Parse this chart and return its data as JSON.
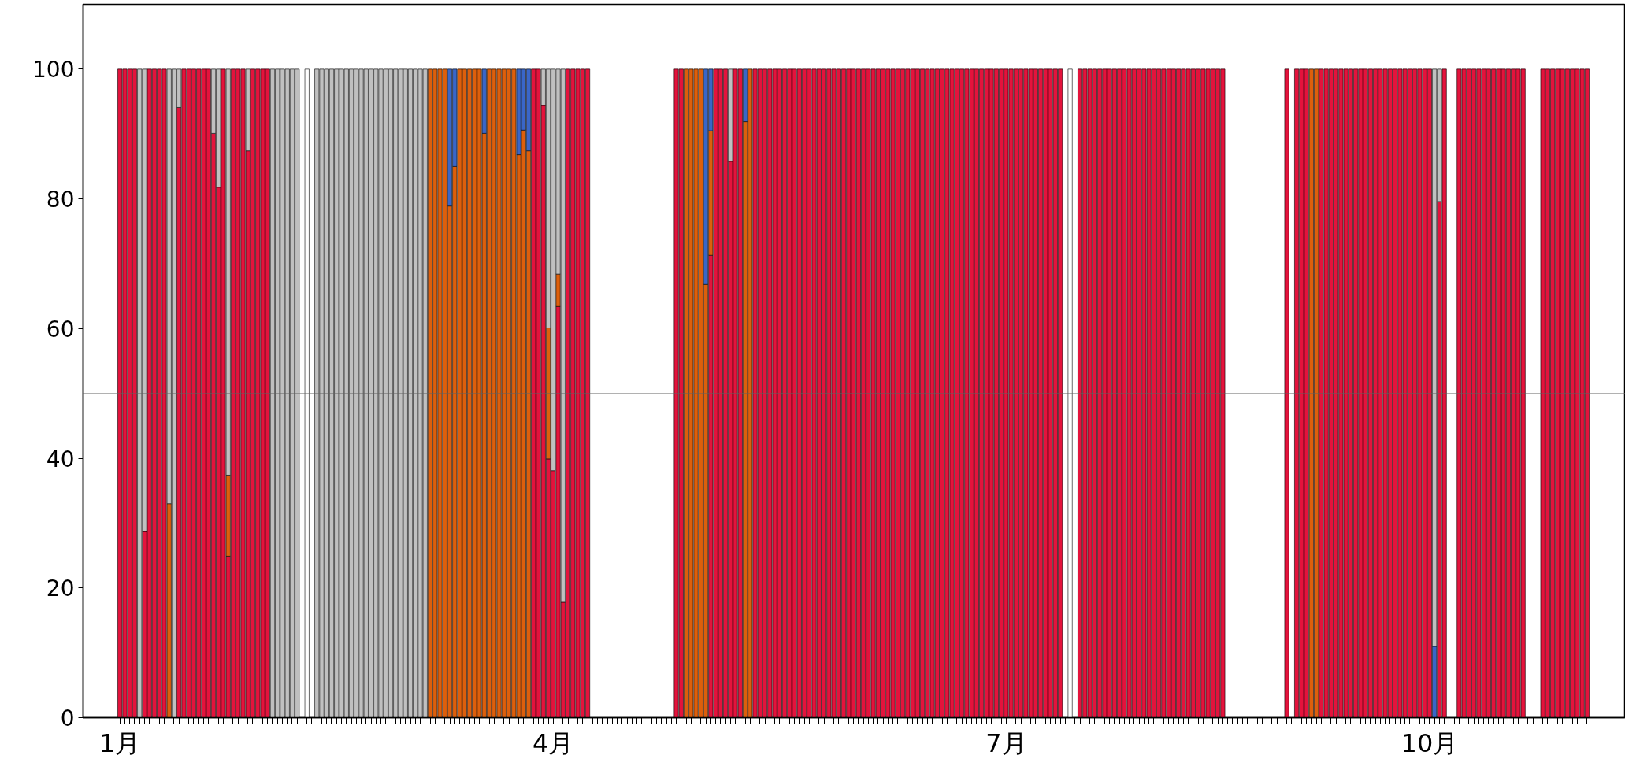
{
  "chart_data": {
    "type": "bar",
    "stacked": true,
    "categories": [
      "1月",
      null,
      null,
      null,
      null,
      null,
      null,
      null,
      null,
      null,
      null,
      null,
      null,
      null,
      null,
      null,
      null,
      null,
      null,
      null,
      null,
      null,
      null,
      null,
      null,
      null,
      null,
      null,
      null,
      null,
      null,
      null,
      null,
      null,
      null,
      null,
      null,
      null,
      null,
      null,
      null,
      null,
      null,
      null,
      null,
      null,
      null,
      null,
      null,
      null,
      null,
      null,
      null,
      null,
      null,
      null,
      null,
      null,
      null,
      null,
      null,
      null,
      null,
      null,
      null,
      null,
      null,
      null,
      null,
      null,
      null,
      null,
      null,
      null,
      null,
      null,
      null,
      null,
      null,
      null,
      null,
      null,
      null,
      null,
      null,
      null,
      null,
      null,
      "4月",
      null,
      null,
      null,
      null,
      null,
      null,
      null,
      null,
      null,
      null,
      null,
      null,
      null,
      null,
      null,
      null,
      null,
      null,
      null,
      null,
      null,
      null,
      null,
      null,
      null,
      null,
      null,
      null,
      null,
      null,
      null,
      null,
      null,
      null,
      null,
      null,
      null,
      null,
      null,
      null,
      null,
      null,
      null,
      null,
      null,
      null,
      null,
      null,
      null,
      null,
      null,
      null,
      null,
      null,
      null,
      null,
      null,
      null,
      null,
      null,
      null,
      null,
      null,
      null,
      null,
      null,
      null,
      null,
      null,
      null,
      null,
      null,
      null,
      null,
      null,
      null,
      null,
      null,
      null,
      null,
      null,
      null,
      null,
      null,
      null,
      null,
      null,
      null,
      null,
      null,
      null,
      "7月",
      null,
      null,
      null,
      null,
      null,
      null,
      null,
      null,
      null,
      null,
      null,
      null,
      null,
      null,
      null,
      null,
      null,
      null,
      null,
      null,
      null,
      null,
      null,
      null,
      null,
      null,
      null,
      null,
      null,
      null,
      null,
      null,
      null,
      null,
      null,
      null,
      null,
      null,
      null,
      null,
      null,
      null,
      null,
      null,
      null,
      null,
      null,
      null,
      null,
      null,
      null,
      null,
      null,
      null,
      null,
      null,
      null,
      null,
      null,
      null,
      null,
      null,
      null,
      null,
      null,
      null,
      null,
      null,
      null,
      null,
      null,
      null,
      null,
      null,
      null,
      null,
      null,
      null,
      null,
      null,
      null,
      null,
      null,
      null,
      null,
      "10月",
      null,
      null,
      null,
      null,
      null,
      null,
      null,
      null,
      null,
      null,
      null,
      null,
      null,
      null,
      null,
      null,
      null,
      null,
      null,
      null,
      null,
      null,
      null,
      null,
      null,
      null,
      null,
      null,
      null,
      null,
      null,
      null
    ],
    "series": [
      {
        "color": "#e4133c",
        "values": [
          100,
          100,
          100,
          100,
          0,
          28.7,
          100,
          100,
          100,
          100,
          0,
          0,
          94.1,
          100,
          100,
          100,
          100,
          100,
          100,
          90.1,
          81.8,
          100,
          24.9,
          100,
          100,
          100,
          87.4,
          100,
          100,
          100,
          100,
          0,
          0,
          0,
          0,
          0,
          0,
          0,
          0,
          0,
          0,
          0,
          0,
          0,
          0,
          0,
          0,
          0,
          0,
          0,
          0,
          0,
          0,
          0,
          0,
          0,
          0,
          0,
          0,
          0,
          0,
          0,
          0,
          0,
          0,
          0,
          0,
          0,
          0,
          0,
          0,
          0,
          0,
          0,
          0,
          0,
          0,
          0,
          0,
          0,
          0,
          0,
          0,
          0,
          100,
          100,
          94.4,
          39.9,
          38.1,
          63.4,
          17.8,
          100,
          100,
          100,
          100,
          100,
          0,
          0,
          0,
          0,
          0,
          0,
          0,
          0,
          0,
          0,
          0,
          0,
          0,
          0,
          0,
          0,
          0,
          100,
          100,
          0,
          0,
          0,
          0,
          0,
          71.3,
          100,
          100,
          100,
          85.8,
          100,
          100,
          0,
          0,
          100,
          100,
          100,
          100,
          100,
          100,
          100,
          100,
          100,
          100,
          100,
          100,
          100,
          100,
          100,
          100,
          100,
          100,
          100,
          100,
          100,
          100,
          100,
          100,
          100,
          100,
          100,
          100,
          100,
          100,
          100,
          100,
          100,
          100,
          100,
          100,
          100,
          100,
          100,
          100,
          100,
          100,
          100,
          100,
          100,
          100,
          100,
          100,
          100,
          100,
          100,
          100,
          100,
          100,
          100,
          100,
          100,
          100,
          100,
          100,
          100,
          100,
          100,
          0,
          0,
          0,
          100,
          100,
          100,
          100,
          100,
          100,
          100,
          100,
          100,
          100,
          100,
          100,
          100,
          100,
          100,
          100,
          100,
          100,
          100,
          100,
          100,
          100,
          100,
          100,
          100,
          100,
          100,
          100,
          100,
          100,
          0,
          0,
          0,
          0,
          0,
          0,
          0,
          0,
          0,
          0,
          0,
          0,
          100,
          0,
          100,
          100,
          100,
          0,
          0,
          100,
          100,
          100,
          100,
          100,
          100,
          100,
          100,
          100,
          100,
          100,
          100,
          100,
          100,
          100,
          100,
          100,
          100,
          100,
          100,
          100,
          100,
          100,
          0,
          79.6,
          100,
          0,
          0,
          100,
          100,
          100,
          100,
          100,
          100,
          100,
          100,
          100,
          100,
          100,
          100,
          100,
          100,
          0,
          0,
          0,
          100,
          100,
          100,
          100,
          100,
          100,
          100,
          100,
          100,
          100
        ]
      },
      {
        "color": "#dd5f0c",
        "values": [
          0,
          0,
          0,
          0,
          0,
          0,
          0,
          0,
          0,
          0,
          33.0,
          0,
          0,
          0,
          0,
          0,
          0,
          0,
          0,
          0,
          0,
          0,
          12.5,
          0,
          0,
          0,
          0,
          0,
          0,
          0,
          0,
          0,
          0,
          0,
          0,
          0,
          0,
          0,
          0,
          0,
          0,
          0,
          0,
          0,
          0,
          0,
          0,
          0,
          0,
          0,
          0,
          0,
          0,
          0,
          0,
          0,
          0,
          0,
          0,
          0,
          0,
          0,
          0,
          100,
          100,
          100,
          100,
          78.9,
          85.0,
          100,
          100,
          100,
          100,
          100,
          90.1,
          100,
          100,
          100,
          100,
          100,
          100,
          86.8,
          90.6,
          87.4,
          0,
          0,
          0,
          20.2,
          0,
          5.0,
          0,
          0,
          0,
          0,
          0,
          0,
          0,
          0,
          0,
          0,
          0,
          0,
          0,
          0,
          0,
          0,
          0,
          0,
          0,
          0,
          0,
          0,
          0,
          0,
          0,
          100,
          100,
          100,
          100,
          66.8,
          19.2,
          0,
          0,
          0,
          0,
          0,
          0,
          91.9,
          100,
          0,
          0,
          0,
          0,
          0,
          0,
          0,
          0,
          0,
          0,
          0,
          0,
          0,
          0,
          0,
          0,
          0,
          0,
          0,
          0,
          0,
          0,
          0,
          0,
          0,
          0,
          0,
          0,
          0,
          0,
          0,
          0,
          0,
          0,
          0,
          0,
          0,
          0,
          0,
          0,
          0,
          0,
          0,
          0,
          0,
          0,
          0,
          0,
          0,
          0,
          0,
          0,
          0,
          0,
          0,
          0,
          0,
          0,
          0,
          0,
          0,
          0,
          0,
          0,
          0,
          0,
          0,
          0,
          0,
          0,
          0,
          0,
          0,
          0,
          0,
          0,
          0,
          0,
          0,
          0,
          0,
          0,
          0,
          0,
          0,
          0,
          0,
          0,
          0,
          0,
          0,
          0,
          0,
          0,
          0,
          0,
          0,
          0,
          0,
          0,
          0,
          0,
          0,
          0,
          0,
          0,
          0,
          0,
          0,
          0,
          0,
          0,
          0,
          100,
          100,
          0,
          0,
          0,
          0,
          0,
          0,
          0,
          0,
          0,
          0,
          0,
          0,
          0,
          0,
          0,
          0,
          0,
          0,
          0,
          0,
          0,
          0,
          0,
          0,
          0,
          0,
          0,
          0,
          0,
          0,
          0,
          0,
          0,
          0,
          0,
          0,
          0,
          0,
          0,
          0,
          0,
          0,
          0,
          0,
          0,
          0,
          0,
          0,
          0,
          0,
          0,
          0,
          0,
          0,
          0
        ]
      },
      {
        "color": "#3a66c8",
        "values": [
          0,
          0,
          0,
          0,
          0,
          0,
          0,
          0,
          0,
          0,
          0,
          0,
          0,
          0,
          0,
          0,
          0,
          0,
          0,
          0,
          0,
          0,
          0,
          0,
          0,
          0,
          0,
          0,
          0,
          0,
          0,
          0,
          0,
          0,
          0,
          0,
          0,
          0,
          0,
          0,
          0,
          0,
          0,
          0,
          0,
          0,
          0,
          0,
          0,
          0,
          0,
          0,
          0,
          0,
          0,
          0,
          0,
          0,
          0,
          0,
          0,
          0,
          0,
          0,
          0,
          0,
          0,
          21.1,
          15.0,
          0,
          0,
          0,
          0,
          0,
          9.9,
          0,
          0,
          0,
          0,
          0,
          0,
          13.2,
          9.4,
          12.6,
          0,
          0,
          0,
          0,
          0,
          0,
          0,
          0,
          0,
          0,
          0,
          0,
          0,
          0,
          0,
          0,
          0,
          0,
          0,
          0,
          0,
          0,
          0,
          0,
          0,
          0,
          0,
          0,
          0,
          0,
          0,
          0,
          0,
          0,
          0,
          33.2,
          9.5,
          0,
          0,
          0,
          0,
          0,
          0,
          8.1,
          0,
          0,
          0,
          0,
          0,
          0,
          0,
          0,
          0,
          0,
          0,
          0,
          0,
          0,
          0,
          0,
          0,
          0,
          0,
          0,
          0,
          0,
          0,
          0,
          0,
          0,
          0,
          0,
          0,
          0,
          0,
          0,
          0,
          0,
          0,
          0,
          0,
          0,
          0,
          0,
          0,
          0,
          0,
          0,
          0,
          0,
          0,
          0,
          0,
          0,
          0,
          0,
          0,
          0,
          0,
          0,
          0,
          0,
          0,
          0,
          0,
          0,
          0,
          0,
          0,
          0,
          0,
          0,
          0,
          0,
          0,
          0,
          0,
          0,
          0,
          0,
          0,
          0,
          0,
          0,
          0,
          0,
          0,
          0,
          0,
          0,
          0,
          0,
          0,
          0,
          0,
          0,
          0,
          0,
          0,
          0,
          0,
          0,
          0,
          0,
          0,
          0,
          0,
          0,
          0,
          0,
          0,
          0,
          0,
          0,
          0,
          0,
          0,
          0,
          0,
          0,
          0,
          0,
          0,
          0,
          0,
          0,
          0,
          0,
          0,
          0,
          0,
          0,
          0,
          0,
          0,
          0,
          0,
          0,
          0,
          0,
          0,
          0,
          0,
          11.0,
          0,
          0,
          0,
          0,
          0,
          0,
          0,
          0,
          0,
          0,
          0,
          0,
          0,
          0,
          0,
          0,
          0,
          0,
          0,
          0,
          0,
          0,
          0,
          0,
          0,
          0,
          0,
          0,
          0,
          0,
          0
        ]
      },
      {
        "color": "#c0c0c0",
        "values": [
          0,
          0,
          0,
          0,
          100,
          71.3,
          0,
          0,
          0,
          0,
          67.0,
          100,
          5.9,
          0,
          0,
          0,
          0,
          0,
          0,
          9.9,
          18.2,
          0,
          62.6,
          0,
          0,
          0,
          12.6,
          0,
          0,
          0,
          0,
          100,
          100,
          100,
          100,
          100,
          100,
          0,
          0,
          0,
          100,
          100,
          100,
          100,
          100,
          100,
          100,
          100,
          100,
          100,
          100,
          100,
          100,
          100,
          100,
          100,
          100,
          100,
          100,
          100,
          100,
          100,
          100,
          0,
          0,
          0,
          0,
          0,
          0,
          0,
          0,
          0,
          0,
          0,
          0,
          0,
          0,
          0,
          0,
          0,
          0,
          0,
          0,
          0,
          0,
          0,
          5.6,
          39.9,
          61.9,
          31.6,
          82.2,
          0,
          0,
          0,
          0,
          0,
          0,
          0,
          0,
          0,
          0,
          0,
          0,
          0,
          0,
          0,
          0,
          0,
          0,
          0,
          0,
          0,
          0,
          0,
          0,
          0,
          0,
          0,
          0,
          0,
          0,
          0,
          0,
          0,
          14.2,
          0,
          0,
          0,
          0,
          0,
          0,
          0,
          0,
          0,
          0,
          0,
          0,
          0,
          0,
          0,
          0,
          0,
          0,
          0,
          0,
          0,
          0,
          0,
          0,
          0,
          0,
          0,
          0,
          0,
          0,
          0,
          0,
          0,
          0,
          0,
          0,
          0,
          0,
          0,
          0,
          0,
          0,
          0,
          0,
          0,
          0,
          0,
          0,
          0,
          0,
          0,
          0,
          0,
          0,
          0,
          0,
          0,
          0,
          0,
          0,
          0,
          0,
          0,
          0,
          0,
          0,
          0,
          0,
          0,
          0,
          0,
          0,
          0,
          0,
          0,
          0,
          0,
          0,
          0,
          0,
          0,
          0,
          0,
          0,
          0,
          0,
          0,
          0,
          0,
          0,
          0,
          0,
          0,
          0,
          0,
          0,
          0,
          0,
          0,
          0,
          0,
          0,
          0,
          0,
          0,
          0,
          0,
          0,
          0,
          0,
          0,
          0,
          0,
          0,
          0,
          0,
          0,
          0,
          0,
          0,
          0,
          0,
          0,
          0,
          0,
          0,
          0,
          0,
          0,
          0,
          0,
          0,
          0,
          0,
          0,
          0,
          0,
          0,
          0,
          0,
          0,
          0,
          89.0,
          20.4,
          0,
          0,
          0,
          0,
          0,
          0,
          0,
          0,
          0,
          0,
          0,
          0,
          0,
          0,
          0,
          0,
          0,
          0,
          0,
          0,
          0,
          0,
          0,
          0,
          0,
          0,
          0,
          0,
          0,
          0
        ]
      },
      {
        "color": "#ffffff",
        "values": [
          0,
          0,
          0,
          0,
          0,
          0,
          0,
          0,
          0,
          0,
          0,
          0,
          0,
          0,
          0,
          0,
          0,
          0,
          0,
          0,
          0,
          0,
          0,
          0,
          0,
          0,
          0,
          0,
          0,
          0,
          0,
          0,
          0,
          0,
          0,
          0,
          0,
          0,
          100,
          0,
          0,
          0,
          0,
          0,
          0,
          0,
          0,
          0,
          0,
          0,
          0,
          0,
          0,
          0,
          0,
          0,
          0,
          0,
          0,
          0,
          0,
          0,
          0,
          0,
          0,
          0,
          0,
          0,
          0,
          0,
          0,
          0,
          0,
          0,
          0,
          0,
          0,
          0,
          0,
          0,
          0,
          0,
          0,
          0,
          0,
          0,
          0,
          0,
          0,
          0,
          0,
          0,
          0,
          0,
          0,
          0,
          0,
          0,
          0,
          0,
          0,
          0,
          0,
          0,
          0,
          0,
          0,
          0,
          0,
          0,
          0,
          0,
          0,
          0,
          0,
          0,
          0,
          0,
          0,
          0,
          0,
          0,
          0,
          0,
          0,
          0,
          0,
          0,
          0,
          0,
          0,
          0,
          0,
          0,
          0,
          0,
          0,
          0,
          0,
          0,
          0,
          0,
          0,
          0,
          0,
          0,
          0,
          0,
          0,
          0,
          0,
          0,
          0,
          0,
          0,
          0,
          0,
          0,
          0,
          0,
          0,
          0,
          0,
          0,
          0,
          0,
          0,
          0,
          0,
          0,
          0,
          0,
          0,
          0,
          0,
          0,
          0,
          0,
          0,
          0,
          0,
          0,
          0,
          0,
          0,
          0,
          0,
          0,
          0,
          0,
          0,
          0,
          0,
          100,
          0,
          0,
          0,
          0,
          0,
          0,
          0,
          0,
          0,
          0,
          0,
          0,
          0,
          0,
          0,
          0,
          0,
          0,
          0,
          0,
          0,
          0,
          0,
          0,
          0,
          0,
          0,
          0,
          0,
          0,
          0,
          0,
          0,
          0,
          0,
          0,
          0,
          0,
          0,
          0,
          0,
          0,
          0,
          0,
          0,
          0,
          0,
          0,
          0,
          0,
          0,
          0,
          0,
          0,
          0,
          0,
          0,
          0,
          0,
          0,
          0,
          0,
          0,
          0,
          0,
          0,
          0,
          0,
          0,
          0,
          0,
          0,
          0,
          0,
          0,
          0,
          0,
          0,
          0,
          0,
          0,
          0,
          0,
          0,
          0,
          0,
          0,
          0,
          0,
          0,
          0,
          0,
          0,
          0,
          0,
          0,
          0,
          0,
          0,
          0,
          0,
          0,
          0,
          0,
          0
        ]
      }
    ],
    "ylim": [
      0,
      110
    ],
    "yticks": [
      0,
      20,
      40,
      60,
      80,
      100
    ],
    "ref_lines": [
      {
        "axis": "y",
        "value": 50,
        "color": "#606060"
      }
    ]
  }
}
